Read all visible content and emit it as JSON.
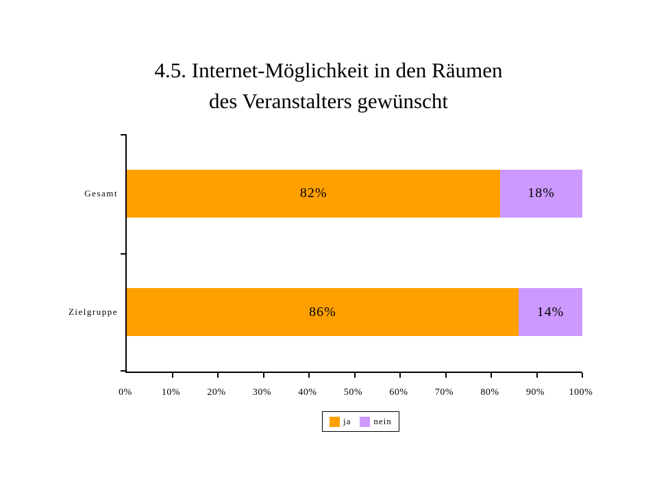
{
  "title_lines": [
    "4.5. Internet-Möglichkeit in den Räumen",
    "des Veranstalters gewünscht"
  ],
  "chart_data": {
    "type": "bar",
    "orientation": "horizontal",
    "stacked": true,
    "title": "4.5. Internet-Möglichkeit in den Räumen des Veranstalters gewünscht",
    "categories": [
      "Gesamt",
      "Zielgruppe"
    ],
    "series": [
      {
        "name": "ja",
        "color": "#FFA000",
        "values": [
          82,
          86
        ]
      },
      {
        "name": "nein",
        "color": "#CC99FF",
        "values": [
          18,
          14
        ]
      }
    ],
    "value_label_format": "percent",
    "x_ticks": [
      "0%",
      "10%",
      "20%",
      "30%",
      "40%",
      "50%",
      "60%",
      "70%",
      "80%",
      "90%",
      "100%"
    ],
    "xlim": [
      0,
      100
    ],
    "grid": false,
    "legend_position": "bottom"
  },
  "colors": {
    "background": "#FFFFFF",
    "axis": "#000000",
    "text": "#000000"
  }
}
